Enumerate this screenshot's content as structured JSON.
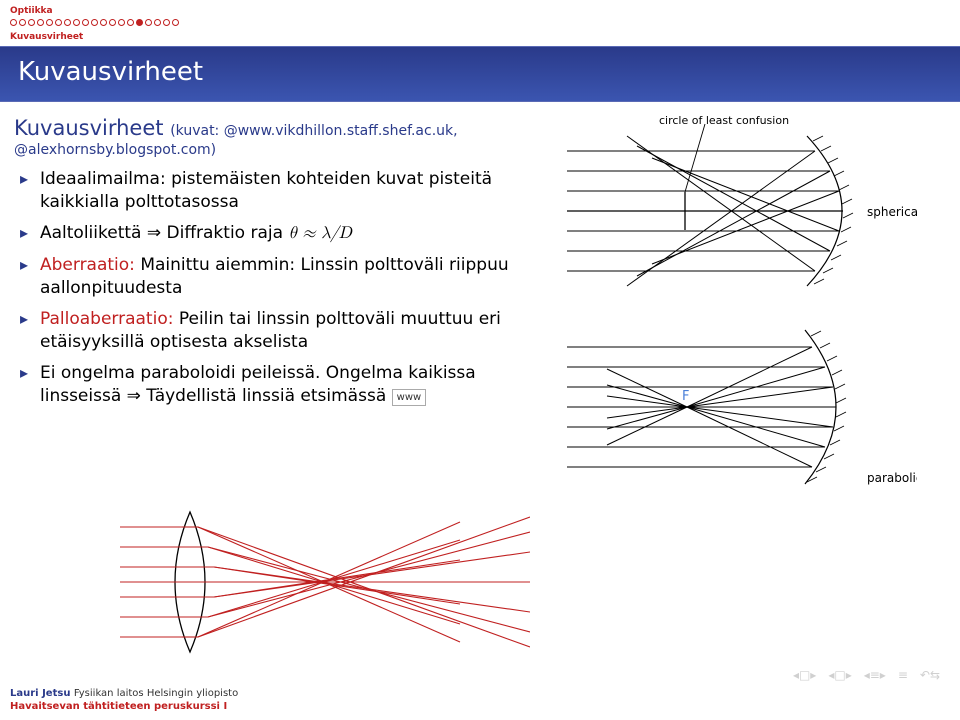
{
  "header": {
    "section": "Optiikka",
    "subsection": "Kuvausvirheet",
    "progress": {
      "total": 19,
      "current": 15
    }
  },
  "title": "Kuvausvirheet",
  "subtitle": {
    "main": "Kuvausvirheet",
    "src1": "(kuvat: @www.vikdhillon.staff.shef.ac.uk,",
    "src2": "@alexhornsby.blogspot.com)"
  },
  "bullets": [
    {
      "text": "Ideaalimailma: pistemäisten kohteiden kuvat pisteitä kaikkialla polttotasossa"
    },
    {
      "text": "Aaltoliikettä ⇒ Diffraktio raja ",
      "math": "θ ≈ λ/D"
    },
    {
      "red": "Aberraatio:",
      "rest": " Mainittu aiemmin: Linssin polttoväli riippuu aallonpituudesta"
    },
    {
      "red": "Palloaberraatio:",
      "rest": " Peilin tai linssin polttoväli muuttuu eri etäisyyksillä optisesta akselista"
    },
    {
      "text": "Ei ongelma paraboloidi peileissä. Ongelma kaikissa linsseissä ⇒ Täydellistä linssiä etsimässä  ",
      "link": "www"
    }
  ],
  "diagrams": {
    "top": {
      "label_top": "circle of least confusion",
      "label_right": "spherical",
      "stroke": "#000000",
      "bg": "#ffffff"
    },
    "bottom": {
      "label_right": "parabolic",
      "focus_label": "F",
      "focus_color": "#4a7fd8",
      "stroke": "#000000"
    },
    "lens": {
      "lens_stroke": "#000000",
      "lens_fill": "#ffffff",
      "ray_color": "#c02020"
    }
  },
  "footer": {
    "author": "Lauri Jetsu",
    "institution": "Fysiikan laitos Helsingin yliopisto",
    "course": "Havaitsevan tähtitieteen peruskurssi I"
  }
}
